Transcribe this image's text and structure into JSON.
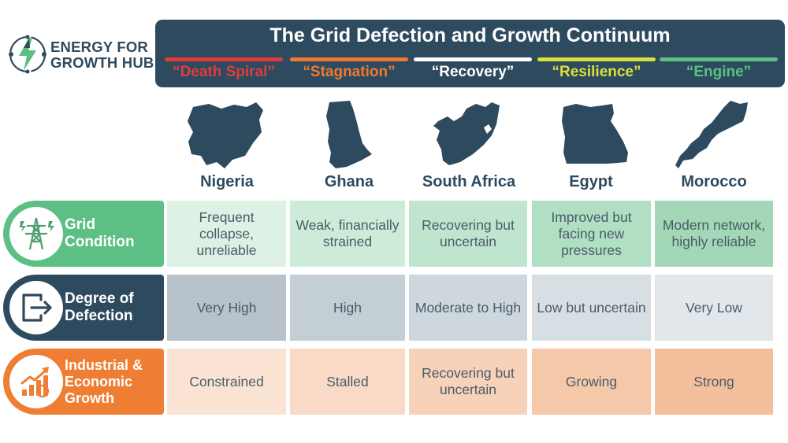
{
  "logo": {
    "line1": "ENERGY FOR",
    "line2": "GROWTH HUB"
  },
  "header": {
    "title": "The Grid Defection and Growth Continuum"
  },
  "stages": [
    {
      "label": "“Death Spiral”",
      "color": "#e23b3b"
    },
    {
      "label": "“Stagnation”",
      "color": "#ee7a2e"
    },
    {
      "label": "“Recovery”",
      "color": "#ffffff"
    },
    {
      "label": "“Resilience”",
      "color": "#d8e23a"
    },
    {
      "label": "“Engine”",
      "color": "#5cc183"
    }
  ],
  "countries": [
    "Nigeria",
    "Ghana",
    "South Africa",
    "Egypt",
    "Morocco"
  ],
  "rows": [
    {
      "label": [
        "Grid",
        "Condition"
      ],
      "color": "#5cbf84",
      "icon": "power-tower-icon",
      "cells": [
        "Frequent collapse, unreliable",
        "Weak, financially strained",
        "Recovering but uncertain",
        "Improved but facing new pressures",
        "Modern network, highly reliable"
      ]
    },
    {
      "label": [
        "Degree of",
        "Defection"
      ],
      "color": "#2e4a5e",
      "icon": "exit-icon",
      "cells": [
        "Very High",
        "High",
        "Moderate to High",
        "Low but uncertain",
        "Very Low"
      ]
    },
    {
      "label": [
        "Industrial &",
        "Economic",
        "Growth"
      ],
      "color": "#ef7d33",
      "icon": "growth-chart-icon",
      "cells": [
        "Constrained",
        "Stalled",
        "Recovering but uncertain",
        "Growing",
        "Strong"
      ]
    }
  ]
}
